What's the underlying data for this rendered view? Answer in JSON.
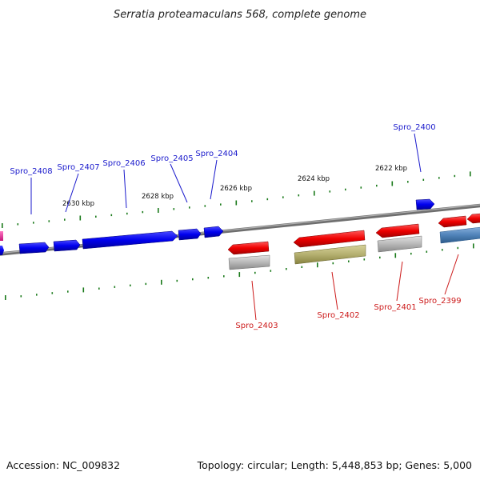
{
  "title": "Serratia proteamaculans 568, complete genome",
  "footer": {
    "accession": "Accession: NC_009832",
    "summary": "Topology: circular; Length: 5,448,853 bp; Genes: 5,000"
  },
  "colors": {
    "forward_gene": "#0000ee",
    "reverse_gene": "#ee0000",
    "label_forward": "#1a1acc",
    "label_reverse": "#cc1a1a",
    "tick": "#1a7a1a",
    "backbone": "#7a7a7a",
    "grey_feature": "#b8b8b8",
    "olive_feature": "#b5b070",
    "steel_feature": "#4f82b8",
    "pink_feature": "#ee2299"
  },
  "scale_labels": [
    "2630 kbp",
    "2628 kbp",
    "2626 kbp",
    "2624 kbp",
    "2622 kbp"
  ],
  "forward_gene_labels": [
    "Spro_2408",
    "Spro_2407",
    "Spro_2406",
    "Spro_2405",
    "Spro_2404",
    "Spro_2400"
  ],
  "reverse_gene_labels": [
    "Spro_2403",
    "Spro_2402",
    "Spro_2401",
    "Spro_2399"
  ]
}
